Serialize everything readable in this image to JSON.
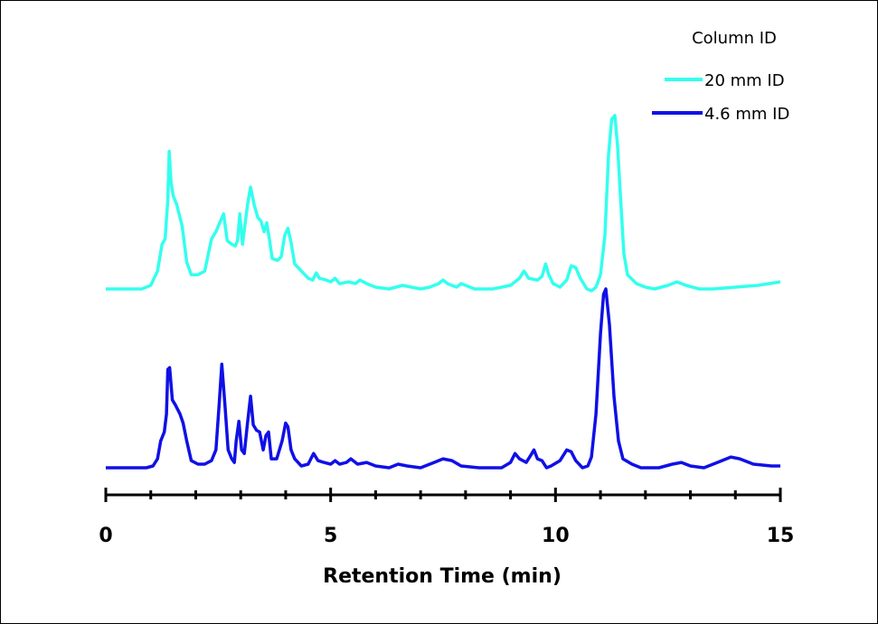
{
  "chart_data": {
    "type": "line",
    "title": "",
    "xlabel": "Retention Time (min)",
    "ylabel": "",
    "xlim": [
      0,
      15
    ],
    "x_ticks": [
      "0",
      "5",
      "10",
      "15"
    ],
    "grid": false,
    "legend": {
      "title": "Column ID",
      "placement": "top-right",
      "entries": [
        "20 mm ID",
        "4.6 mm ID"
      ]
    },
    "series": [
      {
        "name": "20 mm ID",
        "color": "#33ffee",
        "baseline_offset": 1.0,
        "points": [
          [
            0,
            0.0
          ],
          [
            0.8,
            0.0
          ],
          [
            1.0,
            0.02
          ],
          [
            1.15,
            0.1
          ],
          [
            1.25,
            0.25
          ],
          [
            1.32,
            0.28
          ],
          [
            1.38,
            0.5
          ],
          [
            1.41,
            0.77
          ],
          [
            1.45,
            0.6
          ],
          [
            1.5,
            0.52
          ],
          [
            1.58,
            0.47
          ],
          [
            1.7,
            0.35
          ],
          [
            1.8,
            0.15
          ],
          [
            1.9,
            0.08
          ],
          [
            2.05,
            0.08
          ],
          [
            2.2,
            0.1
          ],
          [
            2.35,
            0.28
          ],
          [
            2.45,
            0.32
          ],
          [
            2.55,
            0.38
          ],
          [
            2.62,
            0.42
          ],
          [
            2.7,
            0.27
          ],
          [
            2.8,
            0.25
          ],
          [
            2.88,
            0.24
          ],
          [
            2.93,
            0.27
          ],
          [
            2.98,
            0.42
          ],
          [
            3.04,
            0.25
          ],
          [
            3.08,
            0.33
          ],
          [
            3.15,
            0.47
          ],
          [
            3.22,
            0.57
          ],
          [
            3.3,
            0.47
          ],
          [
            3.38,
            0.4
          ],
          [
            3.45,
            0.38
          ],
          [
            3.52,
            0.32
          ],
          [
            3.58,
            0.37
          ],
          [
            3.65,
            0.26
          ],
          [
            3.7,
            0.17
          ],
          [
            3.82,
            0.16
          ],
          [
            3.9,
            0.18
          ],
          [
            3.98,
            0.3
          ],
          [
            4.05,
            0.34
          ],
          [
            4.12,
            0.26
          ],
          [
            4.2,
            0.14
          ],
          [
            4.35,
            0.1
          ],
          [
            4.5,
            0.06
          ],
          [
            4.6,
            0.05
          ],
          [
            4.68,
            0.09
          ],
          [
            4.75,
            0.06
          ],
          [
            4.9,
            0.05
          ],
          [
            5.0,
            0.04
          ],
          [
            5.1,
            0.06
          ],
          [
            5.2,
            0.03
          ],
          [
            5.4,
            0.04
          ],
          [
            5.55,
            0.03
          ],
          [
            5.65,
            0.05
          ],
          [
            5.8,
            0.03
          ],
          [
            6.0,
            0.01
          ],
          [
            6.3,
            0.0
          ],
          [
            6.6,
            0.02
          ],
          [
            6.8,
            0.01
          ],
          [
            7.0,
            0.0
          ],
          [
            7.2,
            0.01
          ],
          [
            7.4,
            0.03
          ],
          [
            7.5,
            0.05
          ],
          [
            7.6,
            0.03
          ],
          [
            7.8,
            0.01
          ],
          [
            7.9,
            0.03
          ],
          [
            8.0,
            0.02
          ],
          [
            8.2,
            0.0
          ],
          [
            8.6,
            0.0
          ],
          [
            9.0,
            0.02
          ],
          [
            9.2,
            0.06
          ],
          [
            9.3,
            0.1
          ],
          [
            9.4,
            0.06
          ],
          [
            9.6,
            0.05
          ],
          [
            9.7,
            0.07
          ],
          [
            9.78,
            0.14
          ],
          [
            9.85,
            0.08
          ],
          [
            9.95,
            0.03
          ],
          [
            10.1,
            0.01
          ],
          [
            10.25,
            0.05
          ],
          [
            10.35,
            0.13
          ],
          [
            10.45,
            0.12
          ],
          [
            10.55,
            0.06
          ],
          [
            10.7,
            0.0
          ],
          [
            10.8,
            -0.01
          ],
          [
            10.9,
            0.01
          ],
          [
            11.0,
            0.08
          ],
          [
            11.1,
            0.3
          ],
          [
            11.18,
            0.75
          ],
          [
            11.25,
            0.95
          ],
          [
            11.32,
            0.97
          ],
          [
            11.38,
            0.8
          ],
          [
            11.45,
            0.5
          ],
          [
            11.52,
            0.2
          ],
          [
            11.6,
            0.08
          ],
          [
            11.8,
            0.03
          ],
          [
            12.0,
            0.01
          ],
          [
            12.2,
            0.0
          ],
          [
            12.5,
            0.02
          ],
          [
            12.7,
            0.04
          ],
          [
            12.9,
            0.02
          ],
          [
            13.2,
            0.0
          ],
          [
            13.5,
            0.0
          ],
          [
            14.0,
            0.01
          ],
          [
            14.5,
            0.02
          ],
          [
            15.0,
            0.04
          ]
        ]
      },
      {
        "name": "4.6 mm ID",
        "color": "#1010e6",
        "baseline_offset": 0.0,
        "points": [
          [
            0,
            0.0
          ],
          [
            0.9,
            0.0
          ],
          [
            1.05,
            0.01
          ],
          [
            1.15,
            0.05
          ],
          [
            1.22,
            0.15
          ],
          [
            1.3,
            0.2
          ],
          [
            1.35,
            0.3
          ],
          [
            1.38,
            0.55
          ],
          [
            1.42,
            0.56
          ],
          [
            1.48,
            0.38
          ],
          [
            1.55,
            0.35
          ],
          [
            1.65,
            0.3
          ],
          [
            1.72,
            0.25
          ],
          [
            1.8,
            0.15
          ],
          [
            1.9,
            0.04
          ],
          [
            2.05,
            0.02
          ],
          [
            2.2,
            0.02
          ],
          [
            2.35,
            0.04
          ],
          [
            2.45,
            0.1
          ],
          [
            2.52,
            0.35
          ],
          [
            2.58,
            0.58
          ],
          [
            2.65,
            0.35
          ],
          [
            2.72,
            0.1
          ],
          [
            2.8,
            0.05
          ],
          [
            2.86,
            0.03
          ],
          [
            2.9,
            0.15
          ],
          [
            2.96,
            0.26
          ],
          [
            3.02,
            0.1
          ],
          [
            3.08,
            0.08
          ],
          [
            3.15,
            0.25
          ],
          [
            3.22,
            0.4
          ],
          [
            3.28,
            0.24
          ],
          [
            3.35,
            0.21
          ],
          [
            3.42,
            0.2
          ],
          [
            3.5,
            0.1
          ],
          [
            3.56,
            0.18
          ],
          [
            3.62,
            0.2
          ],
          [
            3.68,
            0.05
          ],
          [
            3.8,
            0.05
          ],
          [
            3.92,
            0.15
          ],
          [
            4.0,
            0.25
          ],
          [
            4.05,
            0.23
          ],
          [
            4.12,
            0.1
          ],
          [
            4.2,
            0.05
          ],
          [
            4.35,
            0.01
          ],
          [
            4.5,
            0.02
          ],
          [
            4.62,
            0.08
          ],
          [
            4.72,
            0.04
          ],
          [
            4.85,
            0.03
          ],
          [
            5.0,
            0.02
          ],
          [
            5.1,
            0.04
          ],
          [
            5.2,
            0.02
          ],
          [
            5.35,
            0.03
          ],
          [
            5.45,
            0.05
          ],
          [
            5.6,
            0.02
          ],
          [
            5.8,
            0.03
          ],
          [
            6.0,
            0.01
          ],
          [
            6.3,
            0.0
          ],
          [
            6.5,
            0.02
          ],
          [
            6.7,
            0.01
          ],
          [
            7.0,
            0.0
          ],
          [
            7.3,
            0.03
          ],
          [
            7.5,
            0.05
          ],
          [
            7.7,
            0.04
          ],
          [
            7.9,
            0.01
          ],
          [
            8.3,
            0.0
          ],
          [
            8.8,
            0.0
          ],
          [
            9.0,
            0.03
          ],
          [
            9.1,
            0.08
          ],
          [
            9.2,
            0.05
          ],
          [
            9.35,
            0.03
          ],
          [
            9.45,
            0.07
          ],
          [
            9.52,
            0.1
          ],
          [
            9.6,
            0.05
          ],
          [
            9.7,
            0.04
          ],
          [
            9.8,
            0.0
          ],
          [
            9.9,
            0.01
          ],
          [
            10.1,
            0.04
          ],
          [
            10.25,
            0.1
          ],
          [
            10.35,
            0.09
          ],
          [
            10.45,
            0.04
          ],
          [
            10.6,
            0.0
          ],
          [
            10.72,
            0.01
          ],
          [
            10.8,
            0.06
          ],
          [
            10.9,
            0.3
          ],
          [
            11.0,
            0.75
          ],
          [
            11.07,
            0.97
          ],
          [
            11.12,
            1.0
          ],
          [
            11.2,
            0.8
          ],
          [
            11.3,
            0.4
          ],
          [
            11.4,
            0.15
          ],
          [
            11.5,
            0.05
          ],
          [
            11.7,
            0.02
          ],
          [
            11.9,
            0.0
          ],
          [
            12.3,
            0.0
          ],
          [
            12.6,
            0.02
          ],
          [
            12.8,
            0.03
          ],
          [
            13.0,
            0.01
          ],
          [
            13.3,
            0.0
          ],
          [
            13.6,
            0.03
          ],
          [
            13.9,
            0.06
          ],
          [
            14.1,
            0.05
          ],
          [
            14.4,
            0.02
          ],
          [
            14.8,
            0.01
          ],
          [
            15.0,
            0.01
          ]
        ]
      }
    ]
  }
}
